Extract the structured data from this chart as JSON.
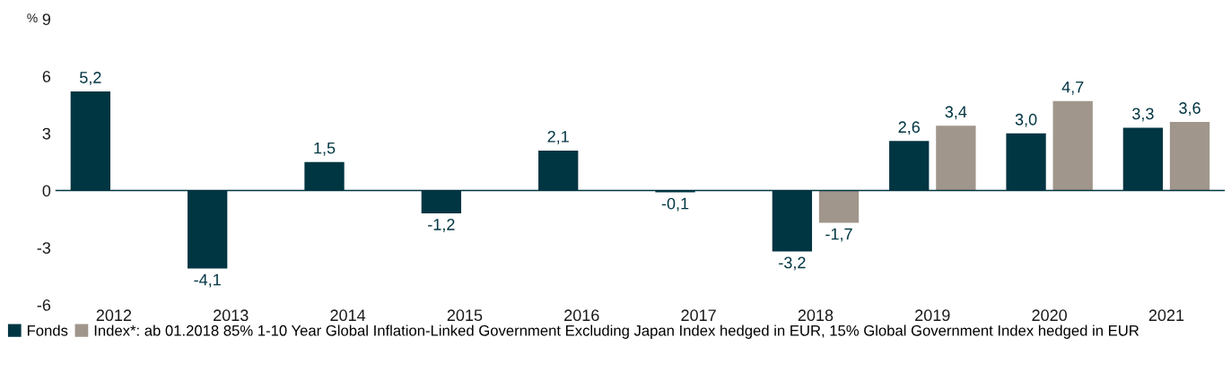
{
  "chart_data": {
    "type": "bar",
    "ylabel": "%",
    "categories": [
      "2012",
      "2013",
      "2014",
      "2015",
      "2016",
      "2017",
      "2018",
      "2019",
      "2020",
      "2021"
    ],
    "series": [
      {
        "name": "Fonds",
        "color": "#003542",
        "values": [
          5.2,
          -4.1,
          1.5,
          -1.2,
          2.1,
          -0.1,
          -3.2,
          2.6,
          3.0,
          3.3
        ],
        "value_labels": [
          "5,2",
          "-4,1",
          "1,5",
          "-1,2",
          "2,1",
          "-0,1",
          "-3,2",
          "2,6",
          "3,0",
          "3,3"
        ]
      },
      {
        "name": "Index*: ab 01.2018 85% 1-10 Year Global Inflation-Linked Government Excluding Japan Index hedged in EUR, 15% Global Government Index hedged in EUR",
        "color": "#a0968b",
        "values": [
          null,
          null,
          null,
          null,
          null,
          null,
          -1.7,
          3.4,
          4.7,
          3.6
        ],
        "value_labels": [
          null,
          null,
          null,
          null,
          null,
          null,
          "-1,7",
          "3,4",
          "4,7",
          "3,6"
        ]
      }
    ],
    "ylim": [
      -6,
      9
    ],
    "yticks": [
      -6,
      -3,
      0,
      3,
      6,
      9
    ],
    "ref_lines": [
      {
        "axis": "y",
        "value": 0,
        "color": "#003542"
      }
    ],
    "grid": false,
    "legend": "bottom left"
  }
}
